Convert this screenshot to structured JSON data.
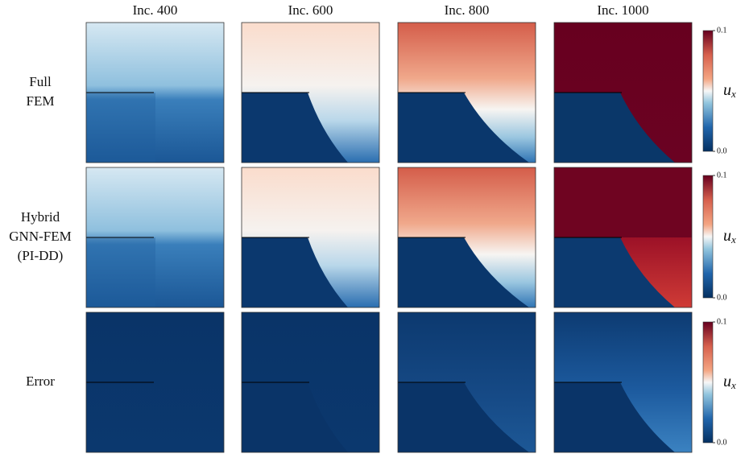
{
  "columns": [
    "Inc. 400",
    "Inc. 600",
    "Inc. 800",
    "Inc. 1000"
  ],
  "rows": [
    {
      "label": [
        "Full",
        "FEM"
      ]
    },
    {
      "label": [
        "Hybrid",
        "GNN-FEM",
        "(PI-DD)"
      ]
    },
    {
      "label": [
        "Error"
      ]
    }
  ],
  "colorbars": [
    {
      "label": {
        "base": "u",
        "sub": "x"
      },
      "ticks": [
        0.1,
        {
          "value": 0,
          "label": "0.0"
        }
      ]
    },
    {
      "label": {
        "base": "u",
        "sub": "x"
      },
      "ticks": [
        0.1,
        {
          "value": 0,
          "label": "0.0"
        }
      ]
    },
    {
      "label": {
        "base": "u",
        "sub": "x"
      },
      "ticks": [
        0.1,
        {
          "value": 0,
          "label": "0.0"
        }
      ]
    }
  ]
}
